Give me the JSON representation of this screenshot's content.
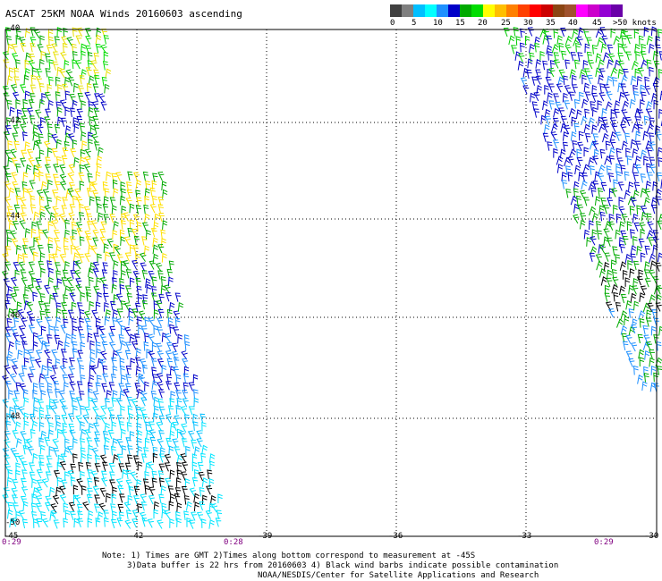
{
  "title": "ASCAT 25KM NOAA Winds 20160603 ascending",
  "legend": {
    "colors": [
      "#404040",
      "#7f7f7f",
      "#00bfff",
      "#00ffff",
      "#1e90ff",
      "#0000c8",
      "#00aa00",
      "#00dd00",
      "#ffff00",
      "#ffbf00",
      "#ff8000",
      "#ff4000",
      "#ff0000",
      "#cc0000",
      "#8b4513",
      "#a0522d",
      "#ff00ff",
      "#cc00cc",
      "#9400d3",
      "#6a00a8"
    ],
    "labels": [
      "0",
      "5",
      "10",
      "15",
      "20",
      "25",
      "30",
      "35",
      "40",
      "45",
      ">50 knots"
    ]
  },
  "lat_labels": [
    "-40",
    "-42",
    "-44",
    "-46",
    "-48",
    "-50"
  ],
  "lon_labels": [
    "-45",
    "-42",
    "-39",
    "-36",
    "-33",
    "-30"
  ],
  "time_labels": [
    "0:29",
    "0:28",
    "0:29"
  ],
  "notes": [
    "Note: 1) Times are GMT 2)Times along bottom correspond to measurement at -45S",
    "3)Data buffer is 22 hrs from 20160603 4) Black wind barbs indicate possible contamination",
    "NOAA/NESDIS/Center for Satellite Applications and Research"
  ]
}
